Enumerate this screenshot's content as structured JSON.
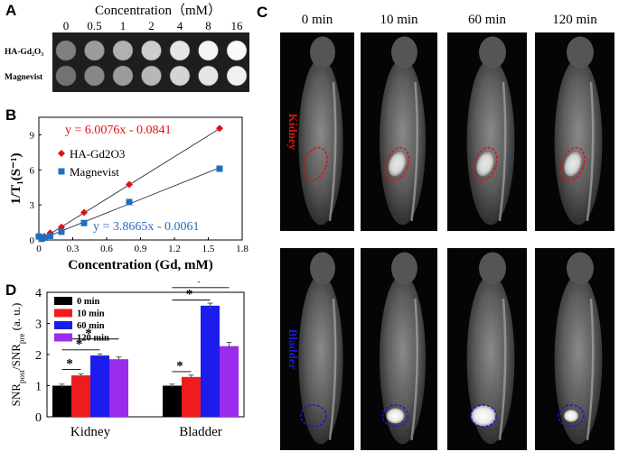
{
  "panel_labels": {
    "a": "A",
    "b": "B",
    "c": "C",
    "d": "D"
  },
  "panel_a": {
    "title": "Concentration（mM）",
    "concentrations": [
      "0",
      "0.5",
      "1",
      "2",
      "4",
      "8",
      "16"
    ],
    "rows": [
      "HA-Gd₂O₃",
      "Magnevist"
    ],
    "brightness": {
      "HA-Gd₂O₃": [
        0.42,
        0.55,
        0.65,
        0.78,
        0.9,
        0.97,
        1.0
      ],
      "Magnevist": [
        0.35,
        0.45,
        0.55,
        0.68,
        0.82,
        0.9,
        0.95
      ]
    }
  },
  "panel_c": {
    "times": [
      "0 min",
      "10 min",
      "60 min",
      "120 min"
    ],
    "row_labels": [
      "Kidney",
      "Bladder"
    ],
    "label_colors": {
      "Kidney": "#e01010",
      "Bladder": "#1a1ad0"
    }
  },
  "chart_data": [
    {
      "type": "scatter",
      "panel": "B",
      "xlabel": "Concentration (Gd, mM)",
      "ylabel": "1/T₁(S⁻¹)",
      "xlim": [
        0,
        1.8
      ],
      "ylim": [
        0,
        10.5
      ],
      "xticks": [
        "0",
        "0.3",
        "0.6",
        "0.9",
        "1.2",
        "1.5",
        "1.8"
      ],
      "yticks": [
        "0",
        "3",
        "6",
        "9"
      ],
      "series": [
        {
          "name": "HA-Gd2O3",
          "color": "#e01010",
          "marker": "diamond",
          "x": [
            0,
            0.025,
            0.05,
            0.1,
            0.2,
            0.4,
            0.8,
            1.6
          ],
          "y": [
            0.3,
            0.15,
            0.3,
            0.6,
            1.1,
            2.35,
            4.75,
            9.55
          ],
          "fit_label": "y = 6.0076x - 0.0841",
          "slope": 6.0076,
          "intercept": -0.0841
        },
        {
          "name": "Magnevist",
          "color": "#1f6fbf",
          "marker": "square",
          "x": [
            0,
            0.025,
            0.05,
            0.1,
            0.2,
            0.4,
            0.8,
            1.6
          ],
          "y": [
            0.3,
            0.1,
            0.2,
            0.35,
            0.7,
            1.45,
            3.25,
            6.1
          ],
          "fit_label": "y = 3.8665x - 0.0061",
          "slope": 3.8665,
          "intercept": -0.0061
        }
      ]
    },
    {
      "type": "bar",
      "panel": "D",
      "ylabel": "SNRpost/SNRpre (a. u.)",
      "ylim": [
        0,
        4
      ],
      "yticks": [
        "0",
        "1",
        "2",
        "3",
        "4"
      ],
      "categories": [
        "Kidney",
        "Bladder"
      ],
      "series": [
        {
          "name": "0 min",
          "color": "#000000",
          "values": [
            1.0,
            1.0
          ],
          "errors": [
            0.05,
            0.05
          ]
        },
        {
          "name": "10 min",
          "color": "#ee1c1c",
          "values": [
            1.33,
            1.28
          ],
          "errors": [
            0.05,
            0.06
          ]
        },
        {
          "name": "60 min",
          "color": "#1c1cee",
          "values": [
            1.97,
            3.57
          ],
          "errors": [
            0.05,
            0.08
          ]
        },
        {
          "name": "120 min",
          "color": "#9b2cee",
          "values": [
            1.85,
            2.27
          ],
          "errors": [
            0.07,
            0.12
          ]
        }
      ],
      "significance_marker": "*"
    }
  ]
}
